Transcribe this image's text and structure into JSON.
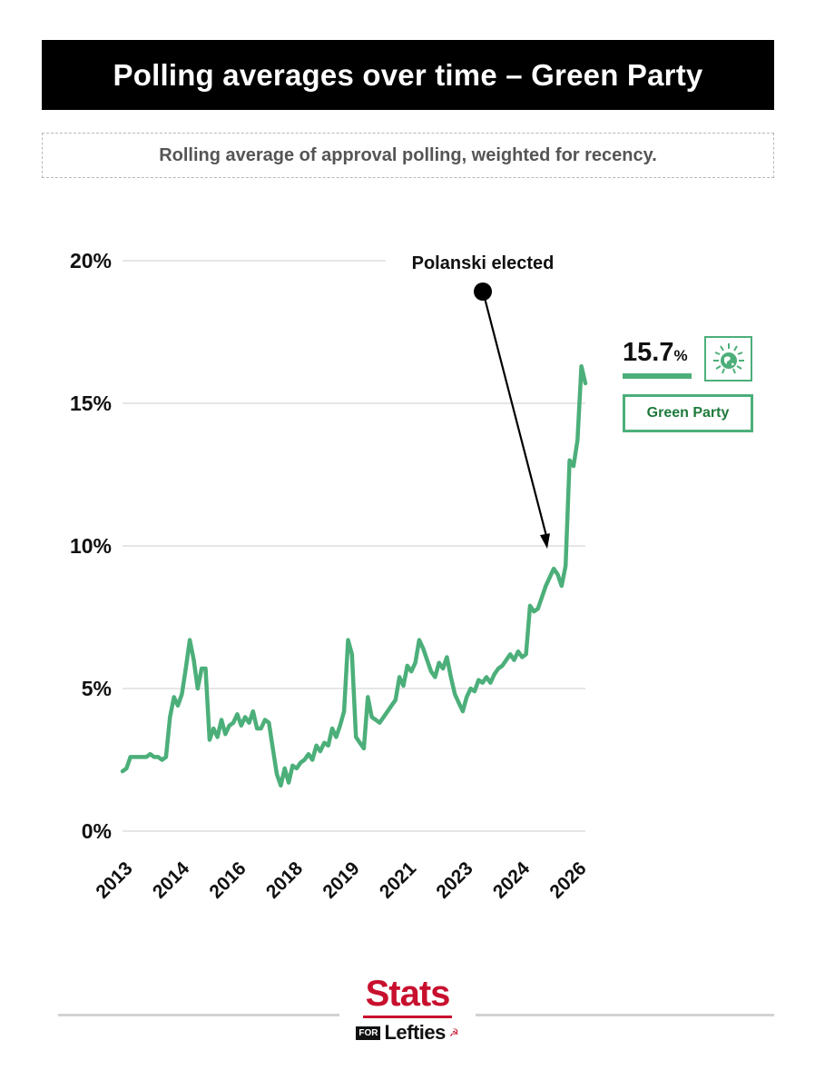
{
  "header": {
    "title": "Polling averages over time – Green Party",
    "subtitle": "Rolling average of approval polling, weighted for recency."
  },
  "legend": {
    "value": "15.7",
    "value_unit": "%",
    "label": "Green Party",
    "logo_icon": "green-party-earth-icon",
    "color": "#4caf7a",
    "label_color": "#1e7a3b"
  },
  "annotation": {
    "text": "Polanski elected",
    "target_value": 9.9
  },
  "brand": {
    "top": "Stats",
    "for": "FOR",
    "bottom": "Lefties",
    "sickle_icon": "hammer-sickle-icon",
    "color": "#c8102e"
  },
  "chart_data": {
    "type": "line",
    "title": "Polling averages over time – Green Party",
    "subtitle": "Rolling average of approval polling, weighted for recency.",
    "xlabel": "",
    "ylabel": "",
    "ylim": [
      0,
      20
    ],
    "yticks": [
      0,
      5,
      10,
      15,
      20
    ],
    "ytick_labels": [
      "0%",
      "5%",
      "10%",
      "15%",
      "20%"
    ],
    "xtick_labels": [
      "2013",
      "2014",
      "2016",
      "2018",
      "2019",
      "2021",
      "2023",
      "2024",
      "2026"
    ],
    "grid": true,
    "legend_position": "right",
    "series": [
      {
        "name": "Green Party",
        "color": "#4caf7a",
        "values": [
          2.1,
          2.2,
          2.6,
          2.6,
          2.6,
          2.6,
          2.6,
          2.7,
          2.6,
          2.6,
          2.5,
          2.6,
          4.0,
          4.7,
          4.4,
          4.8,
          5.7,
          6.7,
          6.0,
          5.0,
          5.7,
          5.7,
          3.2,
          3.6,
          3.3,
          3.9,
          3.4,
          3.7,
          3.8,
          4.1,
          3.7,
          4.0,
          3.8,
          4.2,
          3.6,
          3.6,
          3.9,
          3.8,
          2.9,
          2.0,
          1.6,
          2.2,
          1.7,
          2.3,
          2.2,
          2.4,
          2.5,
          2.7,
          2.5,
          3.0,
          2.8,
          3.1,
          3.0,
          3.6,
          3.3,
          3.7,
          4.2,
          6.7,
          6.2,
          3.3,
          3.1,
          2.9,
          4.7,
          4.0,
          3.9,
          3.8,
          4.0,
          4.2,
          4.4,
          4.6,
          5.4,
          5.1,
          5.8,
          5.6,
          5.9,
          6.7,
          6.4,
          6.0,
          5.6,
          5.4,
          5.9,
          5.7,
          6.1,
          5.4,
          4.8,
          4.5,
          4.2,
          4.7,
          5.0,
          4.9,
          5.3,
          5.2,
          5.4,
          5.2,
          5.5,
          5.7,
          5.8,
          6.0,
          6.2,
          6.0,
          6.3,
          6.1,
          6.2,
          7.9,
          7.7,
          7.8,
          8.2,
          8.6,
          8.9,
          9.2,
          9.0,
          8.6,
          9.3,
          13.0,
          12.8,
          13.7,
          16.3,
          15.7
        ]
      }
    ]
  }
}
